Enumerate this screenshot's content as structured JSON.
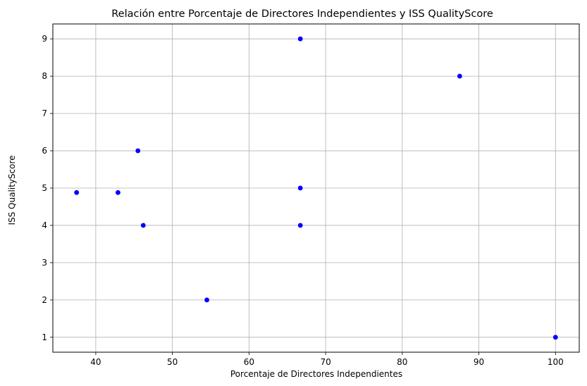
{
  "chart_data": {
    "type": "scatter",
    "title": "Relación entre Porcentaje de Directores Independientes y ISS QualityScore",
    "xlabel": "Porcentaje de Directores Independientes",
    "ylabel": "ISS QualityScore",
    "xlim": [
      34.4,
      103.1
    ],
    "ylim": [
      0.6,
      9.4
    ],
    "xticks": [
      40,
      50,
      60,
      70,
      80,
      90,
      100
    ],
    "yticks": [
      1,
      2,
      3,
      4,
      5,
      6,
      7,
      8,
      9
    ],
    "grid": true,
    "marker_color": "#0000ff",
    "points": [
      {
        "x": 37.5,
        "y": 4.88
      },
      {
        "x": 42.9,
        "y": 4.88
      },
      {
        "x": 45.5,
        "y": 6
      },
      {
        "x": 46.2,
        "y": 4
      },
      {
        "x": 54.5,
        "y": 2
      },
      {
        "x": 66.7,
        "y": 9
      },
      {
        "x": 66.7,
        "y": 5
      },
      {
        "x": 66.7,
        "y": 4
      },
      {
        "x": 87.5,
        "y": 8
      },
      {
        "x": 100,
        "y": 1
      }
    ]
  }
}
